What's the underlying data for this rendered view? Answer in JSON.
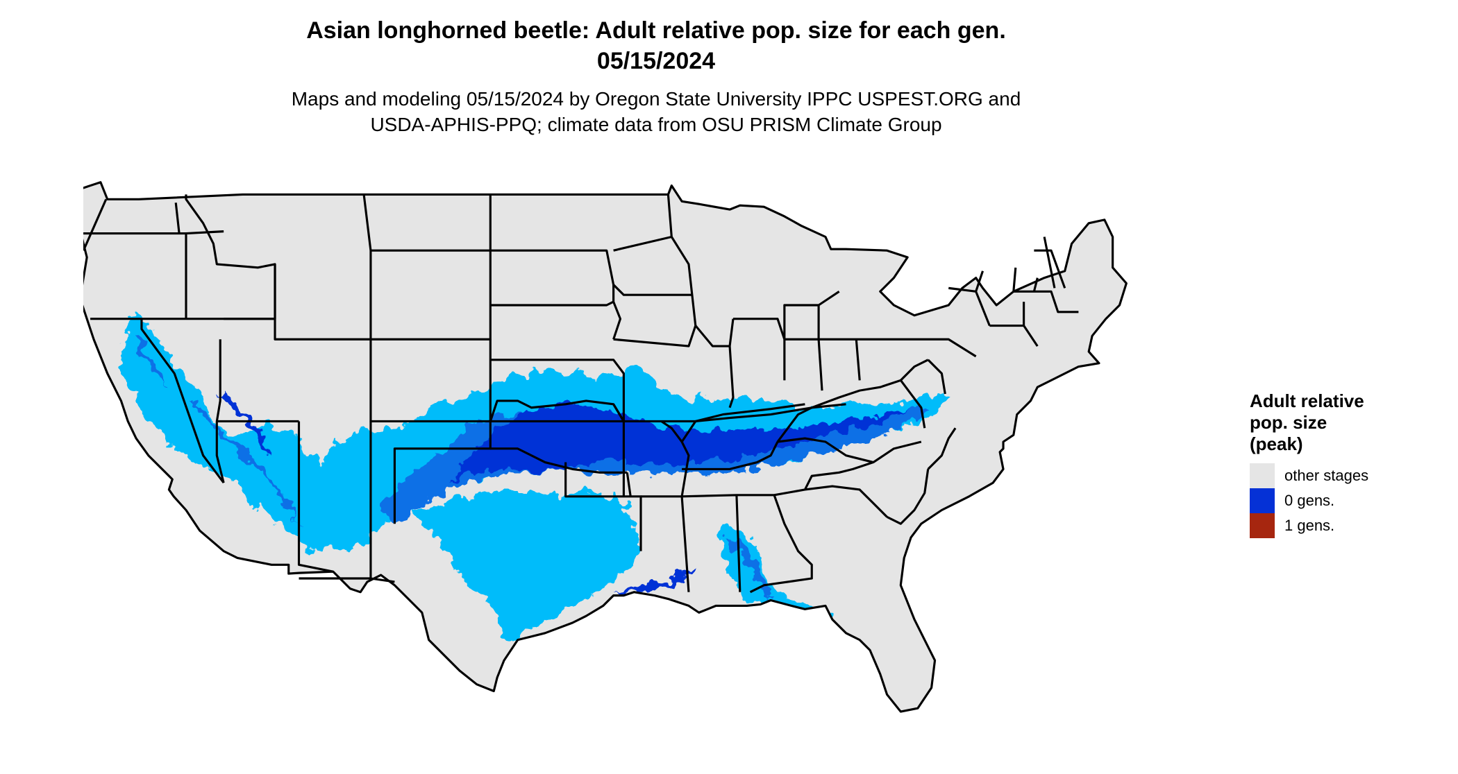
{
  "title_line1": "Asian longhorned beetle: Adult relative pop. size for each gen.",
  "title_line2": "05/15/2024",
  "subtitle_line1": "Maps and modeling 05/15/2024 by Oregon State University IPPC USPEST.ORG and",
  "subtitle_line2": "USDA-APHIS-PPQ; climate data from OSU PRISM Climate Group",
  "legend": {
    "title_line1": "Adult relative",
    "title_line2": "pop. size",
    "title_line3": "(peak)",
    "items": [
      {
        "label": "other stages",
        "color": "#e5e5e5"
      },
      {
        "label": "0 gens.",
        "color": "#0531d6"
      },
      {
        "label": "1 gens.",
        "color": "#a6260f"
      }
    ]
  },
  "map_colors": {
    "other_stages": "#e5e5e5",
    "light_blue": "#04bcfa",
    "mid_blue": "#0a6fe6",
    "dark_blue": "#0531d6",
    "state_borders": "#000000"
  }
}
